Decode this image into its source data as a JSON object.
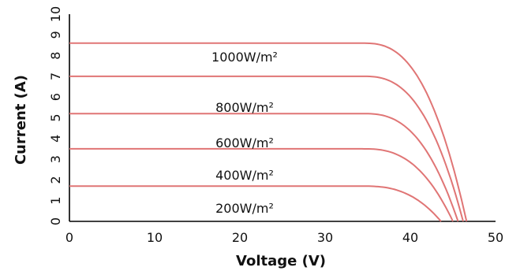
{
  "chart_data": {
    "type": "line",
    "xlabel": "Voltage (V)",
    "ylabel": "Current (A)",
    "xlim": [
      0,
      50
    ],
    "ylim": [
      0,
      10
    ],
    "x_ticks": [
      "0",
      "10",
      "20",
      "30",
      "40",
      "50"
    ],
    "y_ticks": [
      "0",
      "1",
      "2",
      "3",
      "4",
      "5",
      "6",
      "7",
      "8",
      "9",
      "10"
    ],
    "grid": false,
    "series": [
      {
        "name": "",
        "color": "#e07575",
        "isc": 8.6,
        "voc": 46.6,
        "v_knee": 34.5
      },
      {
        "name": "1000W/m²",
        "color": "#e07575",
        "isc": 7.0,
        "voc": 46.2,
        "v_knee": 34.5
      },
      {
        "name": "800W/m²",
        "color": "#e07575",
        "isc": 5.2,
        "voc": 45.6,
        "v_knee": 34.5
      },
      {
        "name": "600W/m²",
        "color": "#e07575",
        "isc": 3.5,
        "voc": 45.0,
        "v_knee": 34.5
      },
      {
        "name": "400W/m²",
        "color": "#e07575",
        "isc": 1.7,
        "voc": 43.6,
        "v_knee": 34.5
      }
    ],
    "annotations": [
      "1000W/m²",
      "800W/m²",
      "600W/m²",
      "400W/m²",
      "200W/m²"
    ]
  }
}
